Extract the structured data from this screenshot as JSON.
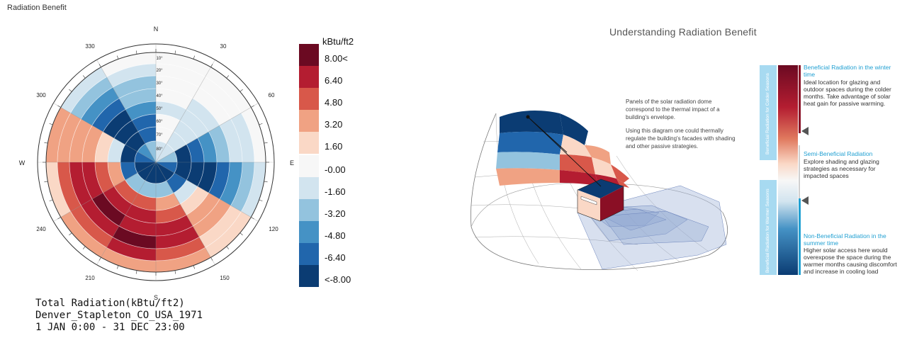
{
  "page_title": "Radiation Benefit",
  "compass": {
    "north": "N",
    "south": "S",
    "east": "E",
    "west": "W",
    "angles": [
      "330",
      "30",
      "300",
      "60",
      "240",
      "120",
      "210",
      "150"
    ],
    "altitudes": [
      "10°",
      "20°",
      "30°",
      "40°",
      "50°",
      "60°",
      "70°",
      "80°"
    ]
  },
  "legend": {
    "unit": "kBtu/ft2",
    "labels": [
      "8.00<",
      "6.40",
      "4.80",
      "3.20",
      "1.60",
      "-0.00",
      "-1.60",
      "-3.20",
      "-4.80",
      "-6.40",
      "<-8.00"
    ],
    "colors": [
      "#6b0a22",
      "#b41d31",
      "#d8584a",
      "#f0a283",
      "#fad8c6",
      "#f7f7f7",
      "#d2e4ef",
      "#93c3de",
      "#4592c5",
      "#2166ac",
      "#0b3c73"
    ]
  },
  "caption": {
    "line1": "Total Radiation(kBtu/ft2)",
    "line2": "Denver_Stapleton_CO_USA_1971",
    "line3": "1 JAN 0:00 - 31 DEC 23:00"
  },
  "diagram": {
    "title": "Understanding Radiation Benefit",
    "note1": "Panels of the solar radiation dome correspond to the thermal impact of a building's envelope.",
    "note2": "Using this diagram one could thermally regulate the building's facades with shading and other passive strategies."
  },
  "side_legend": {
    "winter_head": "Beneficial Radiation in the winter time",
    "winter_body": "Ideal location for glazing and outdoor spaces during the colder months. Take advantage of solar heat gain for passive warming.",
    "semi_head": "Semi-Beneficial Radiation",
    "semi_body": "Explore shading and glazing strategies as necessary for impacted spaces",
    "summer_head": "Non-Beneficial Radiation in the summer time",
    "summer_body": "Higher solar access here would overexpose the space during the warmer months causing discomfort and increase in cooling load",
    "cold_season": "Beneficial Radiation for Colder Seasons",
    "warm_season": "Beneficial Radiation for Warmer Seasons"
  }
}
